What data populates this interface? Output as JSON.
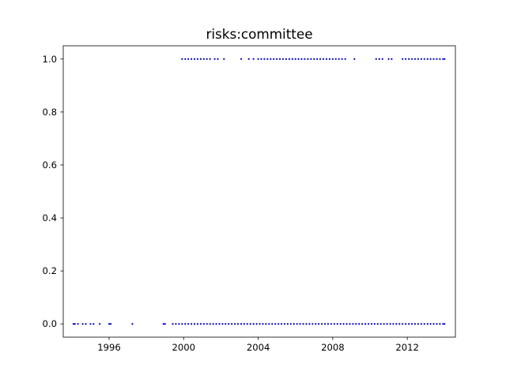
{
  "chart_data": {
    "type": "scatter",
    "title": "risks:committee",
    "xlabel": "",
    "ylabel": "",
    "x_axis_type": "date",
    "xlim": [
      "1993-07-16",
      "2014-08-01"
    ],
    "ylim": [
      -0.05,
      1.05
    ],
    "x_ticks": [
      {
        "value": "1996-01-01",
        "label": "1996"
      },
      {
        "value": "2000-01-01",
        "label": "2000"
      },
      {
        "value": "2004-01-01",
        "label": "2004"
      },
      {
        "value": "2008-01-01",
        "label": "2008"
      },
      {
        "value": "2012-01-01",
        "label": "2012"
      }
    ],
    "y_ticks": [
      {
        "value": 0.0,
        "label": "0.0"
      },
      {
        "value": 0.2,
        "label": "0.2"
      },
      {
        "value": 0.4,
        "label": "0.4"
      },
      {
        "value": 0.6,
        "label": "0.6"
      },
      {
        "value": 0.8,
        "label": "0.8"
      },
      {
        "value": 1.0,
        "label": "1.0"
      }
    ],
    "grid": false,
    "marker_color": "#0000cc",
    "series": [
      {
        "y": 1,
        "x": [
          "1999-12-01",
          "2000-02-01",
          "2000-04-01",
          "2000-06-01",
          "2000-08-01",
          "2000-10-01",
          "2000-12-01",
          "2001-02-01",
          "2001-04-01",
          "2001-06-01",
          "2001-09-01",
          "2001-11-01",
          "2002-03-01",
          "2003-02-01",
          "2003-07-01",
          "2003-10-01",
          "2004-01-01",
          "2004-03-01",
          "2004-05-01",
          "2004-07-01",
          "2004-09-01",
          "2004-11-01",
          "2005-01-01",
          "2005-03-01",
          "2005-05-01",
          "2005-07-01",
          "2005-09-01",
          "2005-11-01",
          "2006-01-01",
          "2006-03-01",
          "2006-05-01",
          "2006-07-01",
          "2006-09-01",
          "2006-11-01",
          "2007-01-01",
          "2007-03-01",
          "2007-05-01",
          "2007-07-01",
          "2007-09-01",
          "2007-11-01",
          "2008-01-01",
          "2008-03-01",
          "2008-05-01",
          "2008-07-01",
          "2008-09-01",
          "2009-03-01",
          "2010-05-01",
          "2010-07-01",
          "2010-09-01",
          "2011-01-01",
          "2011-03-01",
          "2011-10-01",
          "2011-12-01",
          "2012-02-01",
          "2012-04-01",
          "2012-06-01",
          "2012-08-01",
          "2012-10-01",
          "2012-12-01",
          "2013-02-01",
          "2013-04-01",
          "2013-06-01",
          "2013-08-01",
          "2013-10-01",
          "2013-12-01",
          "2014-01-01"
        ]
      },
      {
        "y": 0,
        "x": [
          "1994-02-01",
          "1994-03-01",
          "1994-05-01",
          "1994-08-01",
          "1994-10-01",
          "1995-01-01",
          "1995-03-01",
          "1995-07-01",
          "1996-01-01",
          "1996-02-01",
          "1997-04-01",
          "1998-12-01",
          "1999-01-01",
          "1999-06-01",
          "1999-08-01",
          "1999-10-01",
          "1999-12-01",
          "2000-02-01",
          "2000-04-01",
          "2000-06-01",
          "2000-08-01",
          "2000-10-01",
          "2000-12-01",
          "2001-02-01",
          "2001-04-01",
          "2001-06-01",
          "2001-08-01",
          "2001-10-01",
          "2001-12-01",
          "2002-02-01",
          "2002-04-01",
          "2002-06-01",
          "2002-08-01",
          "2002-10-01",
          "2002-12-01",
          "2003-02-01",
          "2003-04-01",
          "2003-06-01",
          "2003-08-01",
          "2003-10-01",
          "2003-12-01",
          "2004-02-01",
          "2004-04-01",
          "2004-06-01",
          "2004-08-01",
          "2004-10-01",
          "2004-12-01",
          "2005-02-01",
          "2005-04-01",
          "2005-06-01",
          "2005-08-01",
          "2005-10-01",
          "2005-12-01",
          "2006-02-01",
          "2006-04-01",
          "2006-06-01",
          "2006-08-01",
          "2006-10-01",
          "2006-12-01",
          "2007-02-01",
          "2007-04-01",
          "2007-06-01",
          "2007-08-01",
          "2007-10-01",
          "2007-12-01",
          "2008-02-01",
          "2008-04-01",
          "2008-06-01",
          "2008-08-01",
          "2008-10-01",
          "2008-12-01",
          "2009-02-01",
          "2009-04-01",
          "2009-06-01",
          "2009-08-01",
          "2009-10-01",
          "2009-12-01",
          "2010-02-01",
          "2010-04-01",
          "2010-06-01",
          "2010-08-01",
          "2010-10-01",
          "2010-12-01",
          "2011-02-01",
          "2011-04-01",
          "2011-06-01",
          "2011-08-01",
          "2011-10-01",
          "2011-12-01",
          "2012-02-01",
          "2012-04-01",
          "2012-06-01",
          "2012-08-01",
          "2012-10-01",
          "2012-12-01",
          "2013-02-01",
          "2013-04-01",
          "2013-06-01",
          "2013-08-01",
          "2013-10-01",
          "2013-12-01",
          "2014-01-01"
        ]
      }
    ]
  }
}
